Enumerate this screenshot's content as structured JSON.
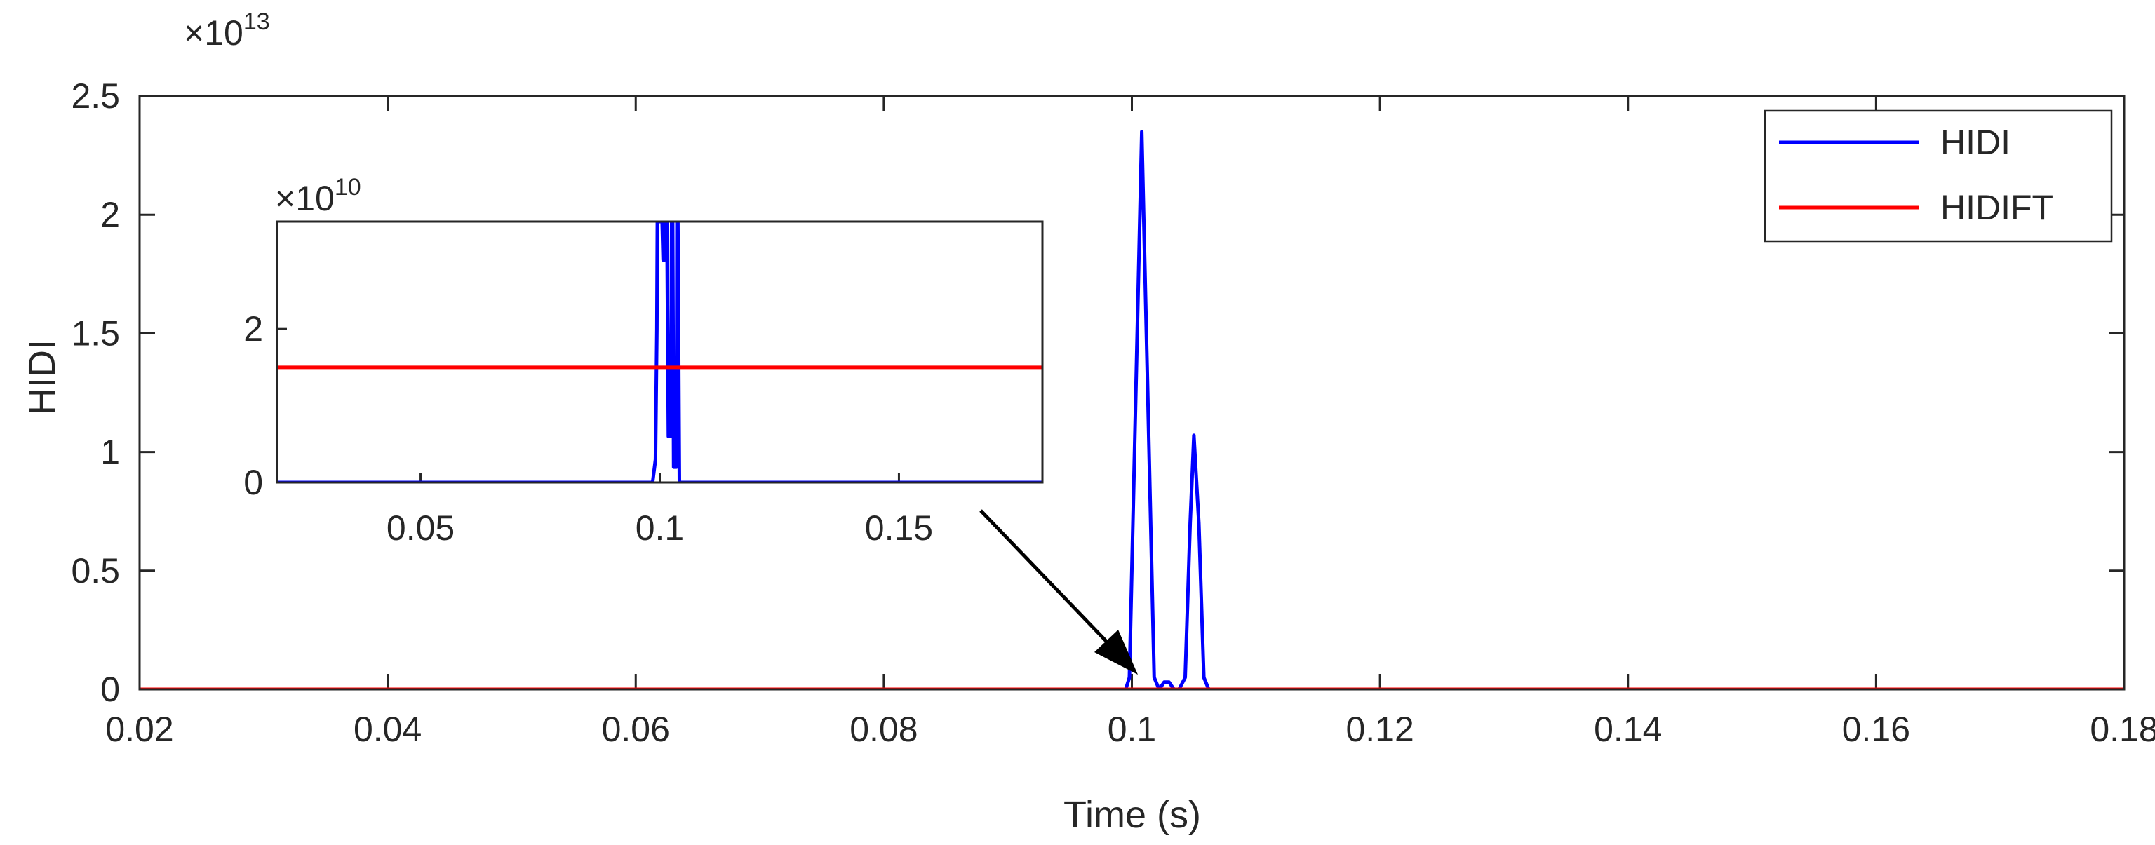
{
  "chart_data": [
    {
      "type": "line",
      "title": "",
      "xlabel": "Time (s)",
      "ylabel": "HIDI",
      "xlim": [
        0.02,
        0.18
      ],
      "ylim": [
        0,
        2.5
      ],
      "y_multiplier": "×10",
      "y_exponent": "13",
      "xticks": [
        "0.02",
        "0.04",
        "0.06",
        "0.08",
        "0.1",
        "0.12",
        "0.14",
        "0.16",
        "0.18"
      ],
      "yticks": [
        "0",
        "0.5",
        "1",
        "1.5",
        "2",
        "2.5"
      ],
      "grid": false,
      "legend_position": "top-right",
      "series": [
        {
          "name": "HIDI",
          "color": "#0000ff",
          "x": [
            0.02,
            0.0995,
            0.0998,
            0.1003,
            0.1008,
            0.1013,
            0.1018,
            0.1022,
            0.1026,
            0.103,
            0.1034,
            0.1038,
            0.1043,
            0.1047,
            0.105,
            0.1054,
            0.1058,
            0.1062,
            0.18
          ],
          "y": [
            0,
            0,
            0.05,
            1.2,
            2.35,
            1.2,
            0.05,
            0,
            0.03,
            0.03,
            0,
            0,
            0.05,
            0.7,
            1.07,
            0.7,
            0.05,
            0,
            0
          ]
        },
        {
          "name": "HIDIFT",
          "color": "#ff0000",
          "x": [
            0.02,
            0.18
          ],
          "y": [
            0,
            0
          ]
        }
      ],
      "annotation": "arrow pointing to the zoomed inset"
    },
    {
      "type": "line",
      "xlim": [
        0.02,
        0.18
      ],
      "ylim": [
        0,
        3.4
      ],
      "y_multiplier": "×10",
      "y_exponent": "10",
      "xticks": [
        "0.05",
        "0.1",
        "0.15"
      ],
      "yticks": [
        "0",
        "2"
      ],
      "series": [
        {
          "name": "HIDI",
          "color": "#0000ff",
          "x": [
            0.02,
            0.0985,
            0.0991,
            0.0994,
            0.0995,
            0.1,
            0.1005,
            0.1007,
            0.101,
            0.1012,
            0.1013,
            0.1015,
            0.1018,
            0.1023,
            0.1025,
            0.1027,
            0.1029,
            0.1035,
            0.1036,
            0.1038,
            0.1041,
            0.18
          ],
          "y": [
            0,
            0,
            0.3,
            2.0,
            3.4,
            3.4,
            3.4,
            2.9,
            2.9,
            3.4,
            3.4,
            3.4,
            0.6,
            0.6,
            3.4,
            3.4,
            0.2,
            0.2,
            3.4,
            3.4,
            0,
            0
          ]
        },
        {
          "name": "HIDIFT",
          "color": "#ff0000",
          "x": [
            0.02,
            0.18
          ],
          "y": [
            1.5,
            1.5
          ]
        }
      ]
    }
  ],
  "legend": {
    "items": [
      {
        "label": "HIDI",
        "color": "#0000ff"
      },
      {
        "label": "HIDIFT",
        "color": "#ff0000"
      }
    ]
  }
}
